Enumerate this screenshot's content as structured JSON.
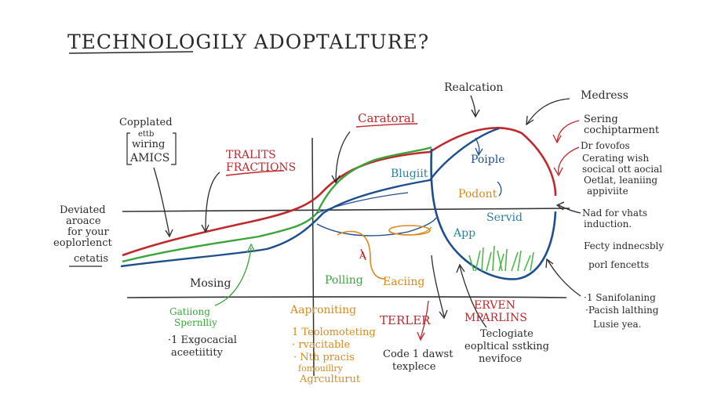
{
  "title": "TECHNOLOGILY ADOPTALTURE?",
  "colors": {
    "ink": "#2a2a2a",
    "red": "#c0282d",
    "green": "#3aa53a",
    "blue": "#1f4e8c",
    "teal": "#2a7fa0",
    "orange": "#d98a1c",
    "grass": "#4cb84c"
  },
  "labels": {
    "top_left_note": [
      "Copplated",
      "ettb",
      "wiring",
      "AMICS"
    ],
    "left_note": [
      "Deviated",
      "aroace",
      "for your",
      "eoplorlenct"
    ],
    "left_bottom": "cetatis",
    "traits": [
      "TRALITS",
      "FRACTIONS"
    ],
    "caratoral": "Caratoral",
    "realcation": "Realcation",
    "medress": "Medress",
    "bluguit": "Blugiit",
    "poiple": "Poiple",
    "podont": "Podont",
    "servid": "Servid",
    "app": "App",
    "mosing": "Mosing",
    "polling": "Polling",
    "eacing": "Eaciing",
    "gating": [
      "Gatiiong",
      "Spernlliy"
    ],
    "gating_note": [
      "·1 Exgocacial",
      "aceetiitity"
    ],
    "approniting": "Aaproniting",
    "approniting_items": [
      "1 Teolomoteting",
      "· rvacitable",
      "· Nth pracis",
      "fomouillry",
      "Agrculturut"
    ],
    "terler": "TERLER",
    "code_note": [
      "Code 1 dawst",
      "texplece"
    ],
    "erven": [
      "ERVEN",
      "MPARLINS"
    ],
    "teclogiate": [
      "Teclogiate",
      "eopltical sstking",
      "nevifoce"
    ],
    "right_top": [
      "Sering",
      "cochiptarment"
    ],
    "right_mid": [
      "Dr fovofos",
      "Cerating wish",
      "socical ott aocial",
      "Oetlat, leaniing",
      "appiviite"
    ],
    "right_need": [
      "Nad for vhats",
      "induction."
    ],
    "right_fecty": [
      "Fecty indnecsbly",
      "porl fencetts"
    ],
    "right_bottom": [
      "·1 Sanifolaning",
      "·Pacish lalthing",
      "Lusie yea."
    ],
    "star_mark": "A"
  }
}
